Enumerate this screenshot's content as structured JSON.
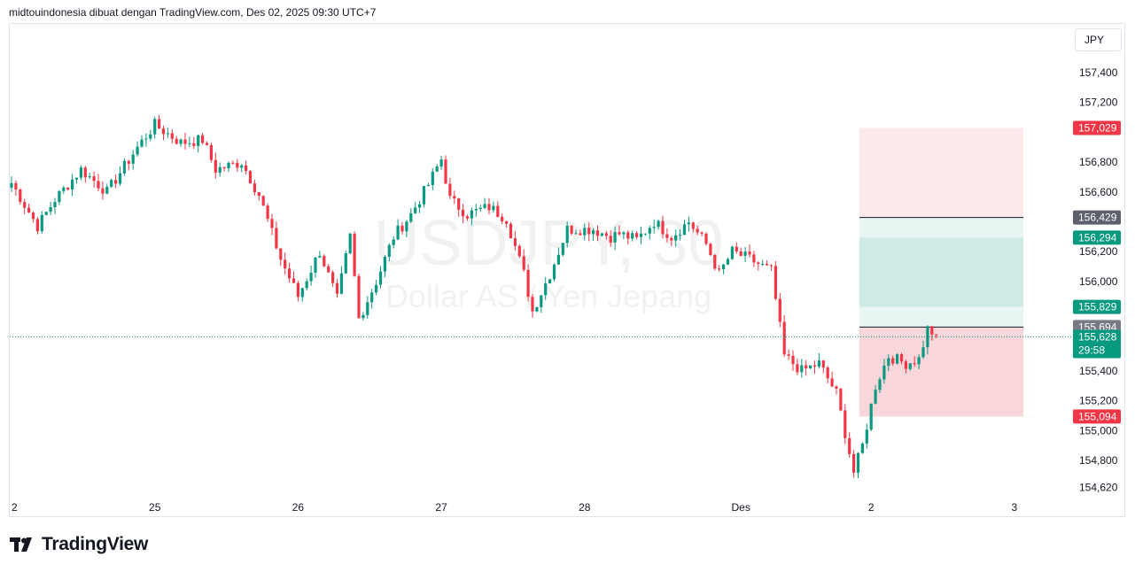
{
  "header": "midtouindonesia dibuat dengan TradingView.com, Des 02, 2025 09:30 UTC+7",
  "currency": "JPY",
  "watermark": {
    "symbol": "USDJPY, 30",
    "name": "Dollar AS / Yen Jepang"
  },
  "footer": {
    "brand": "TradingView",
    "logo_icon": "tradingview-logo-icon"
  },
  "colors": {
    "up": "#089981",
    "down": "#f23645",
    "current": "#089981",
    "stop_zone": "#f7c5cb",
    "target_zone": "#cdeae4",
    "neutral_tag": "#787b86"
  },
  "chart_data": {
    "type": "candlestick",
    "ylim": [
      154.58,
      157.62
    ],
    "y_ticks": [
      "157,400",
      "157,200",
      "156,800",
      "156,600",
      "156,200",
      "156,000",
      "155,400",
      "155,200",
      "155,000",
      "154,800",
      "154,620"
    ],
    "y_tick_values": [
      157.4,
      157.2,
      156.8,
      156.6,
      156.2,
      156.0,
      155.4,
      155.2,
      155.0,
      154.8,
      154.62
    ],
    "x_ticks": [
      "2",
      "25",
      "26",
      "27",
      "28",
      "Des",
      "2",
      "3"
    ],
    "x_tick_index": [
      0,
      33,
      66,
      99,
      132,
      168,
      198,
      231
    ],
    "anchors": [
      [
        0,
        156.66
      ],
      [
        6,
        156.37
      ],
      [
        10,
        156.55
      ],
      [
        16,
        156.75
      ],
      [
        22,
        156.6
      ],
      [
        29,
        156.9
      ],
      [
        33,
        157.05
      ],
      [
        39,
        156.93
      ],
      [
        44,
        156.95
      ],
      [
        47,
        156.75
      ],
      [
        53,
        156.8
      ],
      [
        57,
        156.58
      ],
      [
        62,
        156.15
      ],
      [
        66,
        155.9
      ],
      [
        71,
        156.2
      ],
      [
        75,
        155.88
      ],
      [
        78,
        156.3
      ],
      [
        80,
        155.75
      ],
      [
        84,
        156.0
      ],
      [
        88,
        156.3
      ],
      [
        92,
        156.45
      ],
      [
        96,
        156.65
      ],
      [
        99,
        156.82
      ],
      [
        101,
        156.55
      ],
      [
        105,
        156.45
      ],
      [
        110,
        156.5
      ],
      [
        114,
        156.42
      ],
      [
        118,
        156.05
      ],
      [
        120,
        155.8
      ],
      [
        124,
        156.05
      ],
      [
        128,
        156.35
      ],
      [
        134,
        156.35
      ],
      [
        138,
        156.3
      ],
      [
        140,
        156.32
      ],
      [
        144,
        156.28
      ],
      [
        148,
        156.4
      ],
      [
        152,
        156.3
      ],
      [
        156,
        156.4
      ],
      [
        160,
        156.25
      ],
      [
        163,
        156.05
      ],
      [
        166,
        156.2
      ],
      [
        170,
        156.15
      ],
      [
        175,
        156.07
      ],
      [
        178,
        155.5
      ],
      [
        182,
        155.4
      ],
      [
        186,
        155.45
      ],
      [
        190,
        155.25
      ],
      [
        194,
        154.72
      ],
      [
        196,
        154.9
      ],
      [
        199,
        155.3
      ],
      [
        202,
        155.5
      ],
      [
        206,
        155.45
      ],
      [
        209,
        155.48
      ],
      [
        211,
        155.68
      ],
      [
        213,
        155.64
      ]
    ],
    "last_price": "155,628",
    "countdown": "29:58",
    "position": {
      "entry": 155.694,
      "stop": 155.094,
      "target": 157.029,
      "level_a": 156.429,
      "level_b": 156.294,
      "level_c": 155.829
    },
    "price_tags": [
      {
        "label": "157,029",
        "value": 157.029,
        "color": "#f23645"
      },
      {
        "label": "156,429",
        "value": 156.429,
        "color": "#5d606b"
      },
      {
        "label": "156,294",
        "value": 156.294,
        "color": "#089981"
      },
      {
        "label": "155,829",
        "value": 155.829,
        "color": "#089981"
      },
      {
        "label": "155,694",
        "value": 155.694,
        "color": "#787b86"
      },
      {
        "label": "155,094",
        "value": 155.094,
        "color": "#f23645"
      }
    ]
  }
}
